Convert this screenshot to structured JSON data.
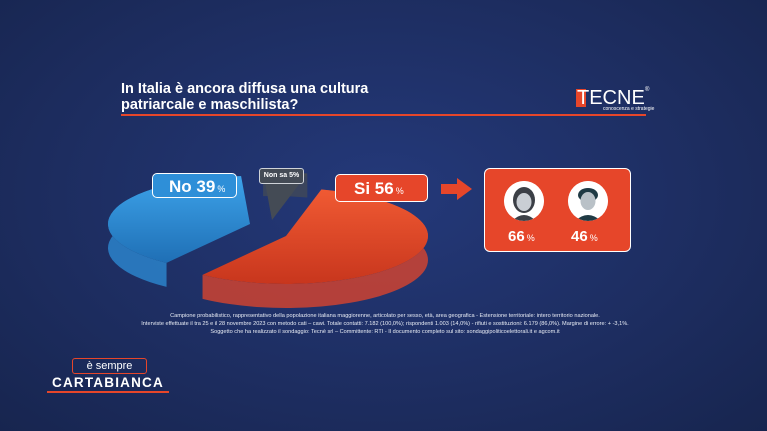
{
  "title": "In Italia è ancora diffusa una cultura patriarcale e maschilista?",
  "logo": {
    "name": "TECNE",
    "tagline": "conoscenza e strategie",
    "reg": "®"
  },
  "chart_data": {
    "type": "pie",
    "slices": [
      {
        "name": "Si",
        "value": 56,
        "color": "#e6462a"
      },
      {
        "name": "No",
        "value": 39,
        "color": "#2e8fd8"
      },
      {
        "name": "Non sa",
        "value": 5,
        "color": "#444b55"
      }
    ],
    "labels": {
      "si": {
        "name": "Si",
        "value": "56",
        "unit": "%"
      },
      "no": {
        "name": "No",
        "value": "39",
        "unit": "%"
      },
      "ns": {
        "name": "Non sa",
        "value": "5",
        "unit": "%"
      }
    },
    "gender_breakdown": {
      "female": {
        "value": "66",
        "unit": "%"
      },
      "male": {
        "value": "46",
        "unit": "%"
      }
    }
  },
  "notes": [
    "Campione probabilistico, rappresentativo della popolazione italiana maggiorenne, articolato per sesso, età, area geografica - Estensione territoriale: intero territorio nazionale.",
    "Interviste effettuate il tra 25 e il 28 novembre 2023 con metodo cati – cawi. Totale contatti: 7.182 (100,0%); rispondenti 1.003 (14,0%) - rifiuti e sostituzioni: 6.179 (86,0%). Margine di errore: + -3,1%.",
    "Soggetto che ha realizzato il sondaggio: Tecnè srl – Committente: RTI - Il documento completo sul sito: sondaggipoliticoelettorali.it e agcom.it"
  ],
  "brand": {
    "top": "è sempre",
    "bottom": "CARTABIANCA"
  },
  "colors": {
    "background": "#1e2f63",
    "accent": "#e6462a",
    "blue": "#2e8fd8",
    "grey": "#444b55"
  }
}
